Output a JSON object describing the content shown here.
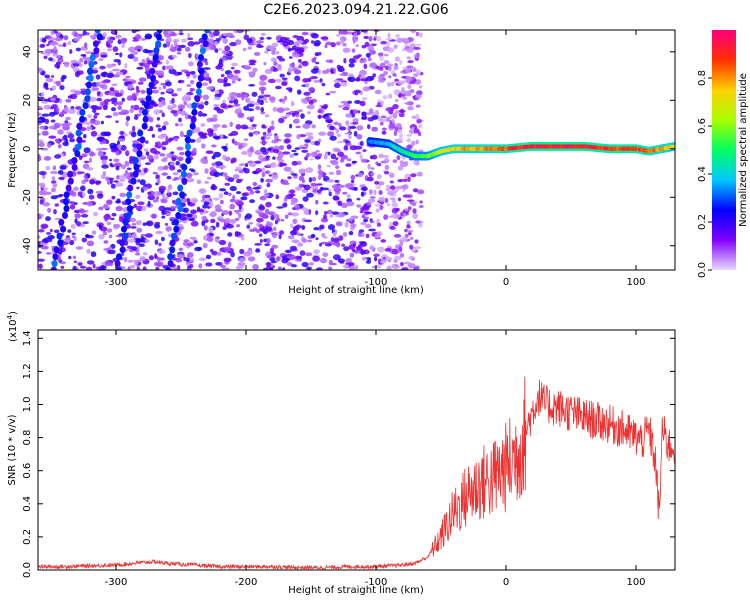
{
  "title": "C2E6.2023.094.21.22.G06",
  "chart_data": [
    {
      "type": "heatmap",
      "xlabel": "Height of straight line (km)",
      "ylabel": "Frequency (Hz)",
      "xlim": [
        -360,
        130
      ],
      "ylim": [
        -50,
        49
      ],
      "x_ticks": [
        -300,
        -200,
        -100,
        0,
        100
      ],
      "y_ticks": [
        -40,
        -20,
        0,
        20,
        40
      ],
      "colorbar": {
        "label": "Normalized spectral amplitude",
        "range": [
          0.0,
          1.0
        ],
        "ticks": [
          0.0,
          0.2,
          0.4,
          0.6,
          0.8
        ],
        "colors": [
          "#e8d8ff",
          "#8000ff",
          "#0000ff",
          "#00c8ff",
          "#00ff60",
          "#a8ff00",
          "#ffd000",
          "#ff3000",
          "#ff0080"
        ]
      },
      "noise_region_x": [
        -360,
        -75
      ],
      "diagonal_features": [
        {
          "x": [
            -355,
            -295
          ],
          "y": [
            -70,
            100
          ]
        },
        {
          "x": [
            -305,
            -250
          ],
          "y": [
            -70,
            100
          ]
        },
        {
          "x": [
            -265,
            -215
          ],
          "y": [
            -70,
            100
          ]
        }
      ],
      "signal_band": {
        "x": [
          -105,
          -90,
          -80,
          -70,
          -60,
          -50,
          -40,
          -30,
          -20,
          -10,
          0,
          20,
          40,
          60,
          80,
          100,
          110,
          120,
          130
        ],
        "freq": [
          3,
          2,
          -1,
          -3,
          -3,
          -1,
          0,
          0,
          0,
          0,
          0,
          1,
          1,
          1,
          0,
          0,
          -1,
          0,
          1
        ],
        "amplitude": [
          0.35,
          0.4,
          0.5,
          0.55,
          0.6,
          0.7,
          0.8,
          0.85,
          0.85,
          0.9,
          0.95,
          1.0,
          1.0,
          1.0,
          0.95,
          0.95,
          0.9,
          0.85,
          0.8
        ]
      }
    },
    {
      "type": "line",
      "xlabel": "Height of straight line (km)",
      "ylabel": "SNR (10 * v/v)",
      "y_scale_label": "(x10",
      "y_scale_exp": "4",
      "y_scale_close": ")",
      "xlim": [
        -360,
        130
      ],
      "ylim": [
        0.0,
        1.45
      ],
      "x_ticks": [
        -300,
        -200,
        -100,
        0,
        100
      ],
      "y_ticks": [
        0.0,
        0.2,
        0.4,
        0.6,
        0.8,
        1.0,
        1.2,
        1.4
      ],
      "series": [
        {
          "color": "#ee3030",
          "x": [
            -360,
            -340,
            -320,
            -300,
            -280,
            -270,
            -260,
            -240,
            -220,
            -200,
            -180,
            -160,
            -140,
            -120,
            -100,
            -90,
            -80,
            -70,
            -60,
            -50,
            -40,
            -30,
            -20,
            -10,
            0,
            10,
            20,
            25,
            30,
            40,
            50,
            60,
            70,
            80,
            90,
            100,
            105,
            110,
            115,
            118,
            120,
            125,
            130
          ],
          "y": [
            0.02,
            0.02,
            0.025,
            0.03,
            0.045,
            0.05,
            0.04,
            0.03,
            0.02,
            0.02,
            0.02,
            0.015,
            0.015,
            0.02,
            0.02,
            0.025,
            0.03,
            0.04,
            0.08,
            0.2,
            0.35,
            0.45,
            0.52,
            0.55,
            0.62,
            0.72,
            0.95,
            1.05,
            1.0,
            0.98,
            0.95,
            0.92,
            0.9,
            0.88,
            0.85,
            0.8,
            0.78,
            0.85,
            0.65,
            0.3,
            0.85,
            0.75,
            0.75
          ]
        }
      ]
    }
  ]
}
